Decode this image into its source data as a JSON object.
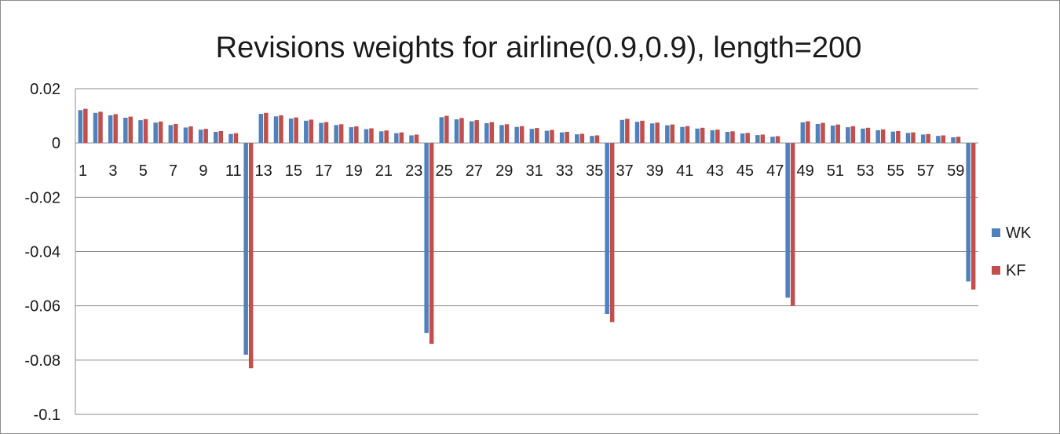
{
  "chart_data": {
    "type": "bar",
    "title": "Revisions weights for airline(0.9,0.9), length=200",
    "xlabel": "",
    "ylabel": "",
    "ylim": [
      -0.1,
      0.02
    ],
    "yticks": [
      0.02,
      0,
      -0.02,
      -0.04,
      -0.06,
      -0.08,
      -0.1
    ],
    "ytick_labels": [
      "0.02",
      "0",
      "-0.02",
      "-0.04",
      "-0.06",
      "-0.08",
      "-0.1"
    ],
    "grid": true,
    "legend_position": "right",
    "categories": [
      1,
      2,
      3,
      4,
      5,
      6,
      7,
      8,
      9,
      10,
      11,
      12,
      13,
      14,
      15,
      16,
      17,
      18,
      19,
      20,
      21,
      22,
      23,
      24,
      25,
      26,
      27,
      28,
      29,
      30,
      31,
      32,
      33,
      34,
      35,
      36,
      37,
      38,
      39,
      40,
      41,
      42,
      43,
      44,
      45,
      46,
      47,
      48,
      49,
      50,
      51,
      52,
      53,
      54,
      55,
      56,
      57,
      58,
      59,
      60
    ],
    "xtick_labels": [
      "1",
      "3",
      "5",
      "7",
      "9",
      "11",
      "13",
      "15",
      "17",
      "19",
      "21",
      "23",
      "25",
      "27",
      "29",
      "31",
      "33",
      "35",
      "37",
      "39",
      "41",
      "43",
      "45",
      "47",
      "49",
      "51",
      "53",
      "55",
      "57",
      "59"
    ],
    "series": [
      {
        "name": "WK",
        "color": "#4f81bd",
        "values": [
          0.0121,
          0.0111,
          0.0102,
          0.0093,
          0.0084,
          0.0075,
          0.0066,
          0.0057,
          0.0049,
          0.0041,
          0.0033,
          -0.078,
          0.0107,
          0.0098,
          0.009,
          0.0082,
          0.0074,
          0.0066,
          0.0058,
          0.0051,
          0.0043,
          0.0036,
          0.0028,
          -0.07,
          0.0095,
          0.0087,
          0.008,
          0.0073,
          0.0066,
          0.0059,
          0.0052,
          0.0045,
          0.0039,
          0.0032,
          0.0026,
          -0.063,
          0.0085,
          0.0078,
          0.0072,
          0.0065,
          0.0059,
          0.0053,
          0.0047,
          0.0041,
          0.0035,
          0.0029,
          0.0023,
          -0.057,
          0.0076,
          0.007,
          0.0064,
          0.0058,
          0.0053,
          0.0047,
          0.0042,
          0.0037,
          0.0031,
          0.0026,
          0.0021,
          -0.051
        ]
      },
      {
        "name": "KF",
        "color": "#c0504d",
        "values": [
          0.0126,
          0.0115,
          0.0106,
          0.0097,
          0.0088,
          0.0079,
          0.007,
          0.0061,
          0.0052,
          0.0044,
          0.0036,
          -0.083,
          0.0111,
          0.0102,
          0.0094,
          0.0086,
          0.0077,
          0.0069,
          0.0061,
          0.0054,
          0.0046,
          0.0039,
          0.0031,
          -0.074,
          0.01,
          0.0092,
          0.0084,
          0.0077,
          0.0069,
          0.0062,
          0.0055,
          0.0048,
          0.0041,
          0.0034,
          0.0028,
          -0.066,
          0.0089,
          0.0082,
          0.0075,
          0.0068,
          0.0062,
          0.0056,
          0.0049,
          0.0043,
          0.0037,
          0.0031,
          0.0025,
          -0.06,
          0.008,
          0.0074,
          0.0068,
          0.0062,
          0.0056,
          0.005,
          0.0044,
          0.0039,
          0.0033,
          0.0028,
          0.0023,
          -0.054
        ]
      }
    ]
  }
}
